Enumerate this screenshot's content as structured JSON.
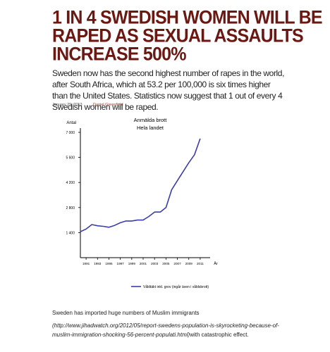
{
  "article": {
    "headline_lines": [
      "1 IN 4 SWEDISH WOMEN WILL BE",
      "RAPED AS SEXUAL ASSAULTS",
      "INCREASE 500%"
    ],
    "lede": "Sweden now has the second highest number of rapes in the world, after South Africa, which at 53.2 per 100,000 is six times higher than the United States. Statistics now suggest that 1 out of every 4 Swedish women will be raped.",
    "date": "January 29, 2013",
    "author": "Daniel Greenfield",
    "footer_text": "Sweden has imported huge numbers of Muslim immigrants",
    "footer_url": "(http://www.jihadwatch.org/2012/05/report-swedens-population-is-skyrocketing-because-of-muslim-immigration-shocking-56-percent-populati.html)",
    "footer_tail": "with catastrophic effect."
  },
  "chart_data": {
    "type": "line",
    "title": "Anmälda brott",
    "subtitle": "Hela landet",
    "ylabel": "Antal",
    "xlabel": "År",
    "ylim": [
      0,
      7000
    ],
    "xlim": [
      1990,
      2012
    ],
    "yticks": [
      1400,
      2800,
      4200,
      5600,
      7000
    ],
    "ytick_labels": [
      "1 400",
      "2 800",
      "4 200",
      "5 600",
      "7 000"
    ],
    "xticks": [
      1991,
      1993,
      1995,
      1997,
      1999,
      2001,
      2003,
      2005,
      2007,
      2009,
      2011
    ],
    "series": [
      {
        "name": "Våldtäkt inkl. grov (ingår även i våldsbrott)",
        "color": "#3a3dae",
        "x": [
          1990,
          1991,
          1992,
          1993,
          1994,
          1995,
          1996,
          1997,
          1998,
          1999,
          2000,
          2001,
          2002,
          2003,
          2004,
          2005,
          2006,
          2007,
          2008,
          2009,
          2010,
          2011
        ],
        "values": [
          1450,
          1600,
          1850,
          1780,
          1750,
          1700,
          1800,
          1950,
          2050,
          2050,
          2100,
          2100,
          2300,
          2550,
          2550,
          2800,
          3800,
          4300,
          4800,
          5300,
          5750,
          6650
        ]
      }
    ]
  }
}
